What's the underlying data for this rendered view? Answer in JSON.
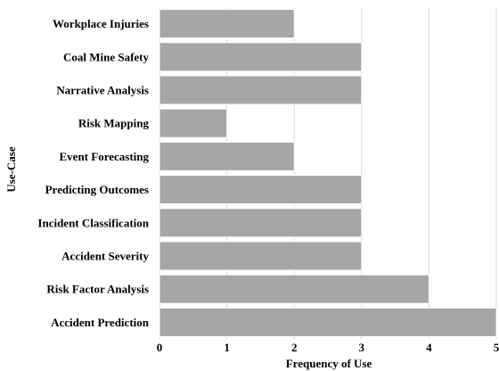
{
  "chart_data": {
    "type": "bar",
    "orientation": "horizontal",
    "title": "",
    "xlabel": "Frequency of Use",
    "ylabel": "Use-Case",
    "categories": [
      "Workplace Injuries",
      "Coal Mine Safety",
      "Narrative Analysis",
      "Risk Mapping",
      "Event Forecasting",
      "Predicting Outcomes",
      "Incident Classification",
      "Accident Severity",
      "Risk Factor Analysis",
      "Accident Prediction"
    ],
    "values": [
      2,
      3,
      3,
      1,
      2,
      3,
      3,
      3,
      4,
      5
    ],
    "xlim": [
      0,
      5
    ],
    "xticks": [
      "0",
      "1",
      "2",
      "3",
      "4",
      "5"
    ],
    "grid": true,
    "legend": "none",
    "colors": {
      "bar": "#a6a6a6",
      "grid": "#d9d9d9",
      "text": "#000000"
    }
  }
}
